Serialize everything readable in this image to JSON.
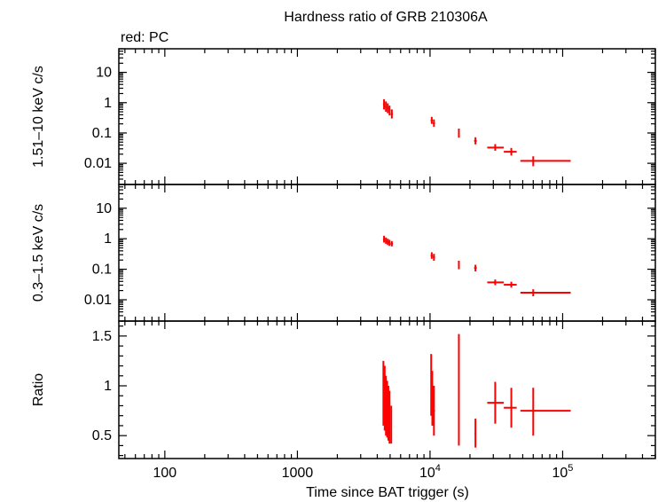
{
  "title": "Hardness ratio of GRB 210306A",
  "legend_note": "red: PC",
  "xlabel": "Time since BAT trigger (s)",
  "colors": {
    "data": "#ff0000",
    "axes": "#000000",
    "background": "#ffffff"
  },
  "chart_data": [
    {
      "type": "scatter",
      "panel": "top",
      "ylabel": "1.51–10 keV c/s",
      "xscale": "log",
      "yscale": "log",
      "xlim": [
        45,
        500000
      ],
      "ylim": [
        0.002,
        60
      ],
      "y_ticks": [
        {
          "v": 10,
          "label": "10"
        },
        {
          "v": 1,
          "label": "1"
        },
        {
          "v": 0.1,
          "label": "0.1"
        },
        {
          "v": 0.01,
          "label": "0.01"
        }
      ],
      "series": [
        {
          "color": "#ff0000",
          "points": [
            {
              "x": 4500,
              "y": 0.9,
              "xerr": [
                4420,
                4580
              ],
              "yerr": [
                0.6,
                1.3
              ]
            },
            {
              "x": 4650,
              "y": 0.75,
              "xerr": [
                4580,
                4720
              ],
              "yerr": [
                0.5,
                1.1
              ]
            },
            {
              "x": 4800,
              "y": 0.65,
              "xerr": [
                4720,
                4880
              ],
              "yerr": [
                0.45,
                0.95
              ]
            },
            {
              "x": 4950,
              "y": 0.55,
              "xerr": [
                4880,
                5020
              ],
              "yerr": [
                0.38,
                0.8
              ]
            },
            {
              "x": 5150,
              "y": 0.42,
              "xerr": [
                5050,
                5250
              ],
              "yerr": [
                0.3,
                0.6
              ]
            },
            {
              "x": 10300,
              "y": 0.26,
              "xerr": [
                10100,
                10500
              ],
              "yerr": [
                0.2,
                0.34
              ]
            },
            {
              "x": 10700,
              "y": 0.21,
              "xerr": [
                10500,
                10900
              ],
              "yerr": [
                0.16,
                0.28
              ]
            },
            {
              "x": 16500,
              "y": 0.1,
              "xerr": [
                16300,
                16700
              ],
              "yerr": [
                0.07,
                0.14
              ]
            },
            {
              "x": 22000,
              "y": 0.055,
              "xerr": [
                21500,
                22500
              ],
              "yerr": [
                0.042,
                0.072
              ]
            },
            {
              "x": 31000,
              "y": 0.033,
              "xerr": [
                27000,
                36000
              ],
              "yerr": [
                0.026,
                0.043
              ]
            },
            {
              "x": 41000,
              "y": 0.024,
              "xerr": [
                36000,
                45000
              ],
              "yerr": [
                0.018,
                0.032
              ]
            },
            {
              "x": 60000,
              "y": 0.012,
              "xerr": [
                48000,
                115000
              ],
              "yerr": [
                0.008,
                0.017
              ]
            }
          ]
        }
      ]
    },
    {
      "type": "scatter",
      "panel": "middle",
      "ylabel": "0.3–1.5 keV c/s",
      "xscale": "log",
      "yscale": "log",
      "xlim": [
        45,
        500000
      ],
      "ylim": [
        0.002,
        60
      ],
      "y_ticks": [
        {
          "v": 10,
          "label": "10"
        },
        {
          "v": 1,
          "label": "1"
        },
        {
          "v": 0.1,
          "label": "0.1"
        },
        {
          "v": 0.01,
          "label": "0.01"
        }
      ],
      "series": [
        {
          "color": "#ff0000",
          "points": [
            {
              "x": 4500,
              "y": 0.95,
              "xerr": [
                4420,
                4580
              ],
              "yerr": [
                0.75,
                1.25
              ]
            },
            {
              "x": 4650,
              "y": 0.85,
              "xerr": [
                4580,
                4720
              ],
              "yerr": [
                0.68,
                1.1
              ]
            },
            {
              "x": 4800,
              "y": 0.78,
              "xerr": [
                4720,
                4880
              ],
              "yerr": [
                0.62,
                1.0
              ]
            },
            {
              "x": 4950,
              "y": 0.72,
              "xerr": [
                4880,
                5020
              ],
              "yerr": [
                0.58,
                0.92
              ]
            },
            {
              "x": 5150,
              "y": 0.68,
              "xerr": [
                5050,
                5250
              ],
              "yerr": [
                0.56,
                0.84
              ]
            },
            {
              "x": 10300,
              "y": 0.28,
              "xerr": [
                10100,
                10500
              ],
              "yerr": [
                0.22,
                0.36
              ]
            },
            {
              "x": 10700,
              "y": 0.25,
              "xerr": [
                10500,
                10900
              ],
              "yerr": [
                0.19,
                0.32
              ]
            },
            {
              "x": 16500,
              "y": 0.14,
              "xerr": [
                16300,
                16700
              ],
              "yerr": [
                0.1,
                0.19
              ]
            },
            {
              "x": 22000,
              "y": 0.11,
              "xerr": [
                21500,
                22500
              ],
              "yerr": [
                0.085,
                0.14
              ]
            },
            {
              "x": 31000,
              "y": 0.037,
              "xerr": [
                27000,
                36000
              ],
              "yerr": [
                0.03,
                0.046
              ]
            },
            {
              "x": 41000,
              "y": 0.031,
              "xerr": [
                36000,
                45000
              ],
              "yerr": [
                0.025,
                0.039
              ]
            },
            {
              "x": 60000,
              "y": 0.017,
              "xerr": [
                48000,
                115000
              ],
              "yerr": [
                0.013,
                0.022
              ]
            }
          ]
        }
      ]
    },
    {
      "type": "scatter",
      "panel": "bottom",
      "ylabel": "Ratio",
      "xscale": "log",
      "yscale": "linear",
      "xlim": [
        45,
        500000
      ],
      "ylim": [
        0.27,
        1.65
      ],
      "y_ticks": [
        {
          "v": 1.5,
          "label": "1.5"
        },
        {
          "v": 1,
          "label": "1"
        },
        {
          "v": 0.5,
          "label": "0.5"
        }
      ],
      "x_ticks": [
        {
          "v": 100,
          "label": "100"
        },
        {
          "v": 1000,
          "label": "1000"
        },
        {
          "v": 10000,
          "label": "10",
          "sup": "4"
        },
        {
          "v": 100000,
          "label": "10",
          "sup": "5"
        }
      ],
      "series": [
        {
          "color": "#ff0000",
          "points": [
            {
              "x": 4450,
              "y": 0.95,
              "xerr": [
                4420,
                4480
              ],
              "yerr": [
                0.6,
                1.25
              ]
            },
            {
              "x": 4550,
              "y": 0.85,
              "xerr": [
                4520,
                4580
              ],
              "yerr": [
                0.55,
                1.2
              ]
            },
            {
              "x": 4650,
              "y": 0.8,
              "xerr": [
                4620,
                4680
              ],
              "yerr": [
                0.5,
                1.1
              ]
            },
            {
              "x": 4750,
              "y": 0.75,
              "xerr": [
                4720,
                4780
              ],
              "yerr": [
                0.48,
                1.05
              ]
            },
            {
              "x": 4850,
              "y": 0.7,
              "xerr": [
                4820,
                4880
              ],
              "yerr": [
                0.45,
                1.0
              ]
            },
            {
              "x": 4950,
              "y": 0.65,
              "xerr": [
                4920,
                4980
              ],
              "yerr": [
                0.42,
                0.95
              ]
            },
            {
              "x": 5100,
              "y": 0.6,
              "xerr": [
                5050,
                5150
              ],
              "yerr": [
                0.42,
                0.8
              ]
            },
            {
              "x": 10200,
              "y": 1.0,
              "xerr": [
                10100,
                10300
              ],
              "yerr": [
                0.7,
                1.32
              ]
            },
            {
              "x": 10400,
              "y": 0.9,
              "xerr": [
                10300,
                10500
              ],
              "yerr": [
                0.6,
                1.15
              ]
            },
            {
              "x": 10700,
              "y": 0.75,
              "xerr": [
                10500,
                10900
              ],
              "yerr": [
                0.5,
                1.0
              ]
            },
            {
              "x": 16500,
              "y": 0.95,
              "xerr": [
                16300,
                16700
              ],
              "yerr": [
                0.4,
                1.52
              ]
            },
            {
              "x": 22000,
              "y": 0.52,
              "xerr": [
                21700,
                22300
              ],
              "yerr": [
                0.38,
                0.67
              ]
            },
            {
              "x": 31000,
              "y": 0.83,
              "xerr": [
                27000,
                36000
              ],
              "yerr": [
                0.62,
                1.04
              ]
            },
            {
              "x": 41000,
              "y": 0.78,
              "xerr": [
                36000,
                45000
              ],
              "yerr": [
                0.58,
                0.98
              ]
            },
            {
              "x": 60000,
              "y": 0.75,
              "xerr": [
                48000,
                115000
              ],
              "yerr": [
                0.5,
                0.98
              ]
            }
          ]
        }
      ]
    }
  ]
}
